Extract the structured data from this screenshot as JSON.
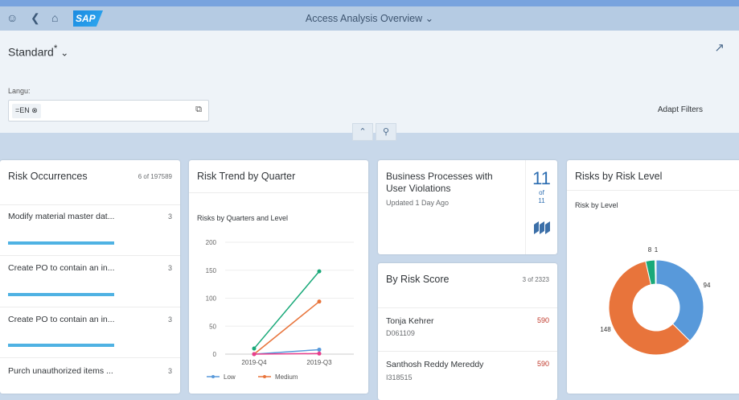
{
  "shell": {
    "title": "Access Analysis Overview",
    "logo": "SAP",
    "icons": [
      "user-icon",
      "back-icon",
      "home-icon"
    ]
  },
  "header": {
    "variant": "Standard",
    "variant_modified": "*",
    "filter_label": "Langu:",
    "token": "=EN",
    "adapt_filters": "Adapt Filters"
  },
  "cards": {
    "risk_occurrences": {
      "title": "Risk Occurrences",
      "count": "6 of 197589",
      "items": [
        {
          "label": "Modify material master dat...",
          "value": "3",
          "bar": 1.0
        },
        {
          "label": "Create PO to contain an in...",
          "value": "3",
          "bar": 1.0
        },
        {
          "label": "Create PO to contain an in...",
          "value": "3",
          "bar": 1.0
        },
        {
          "label": "Purch unauthorized items ...",
          "value": "3",
          "bar": 1.0
        }
      ]
    },
    "risk_trend": {
      "title": "Risk Trend by Quarter"
    },
    "business_processes": {
      "title_line1": "Business Processes with",
      "title_line2": "User Violations",
      "subtitle": "Updated 1 Day Ago",
      "kpi": "11",
      "of": "of",
      "total": "11",
      "kpi_color": "#2b6cb0"
    },
    "risk_score": {
      "title": "By Risk Score",
      "count": "3 of 2323",
      "items": [
        {
          "name": "Tonja Kehrer",
          "id": "D061109",
          "score": "590"
        },
        {
          "name": "Santhosh Reddy Mereddy",
          "id": "I318515",
          "score": "590"
        }
      ]
    },
    "risk_level": {
      "title": "Risks by Risk Level"
    }
  },
  "chart_data": [
    {
      "type": "line",
      "title": "Risks by Quarters and Level",
      "categories": [
        "2019-Q4",
        "2019-Q3"
      ],
      "ylim": [
        0,
        200
      ],
      "yticks": [
        "0",
        "50",
        "100",
        "150",
        "200"
      ],
      "grid": true,
      "legend": "bottom",
      "series": [
        {
          "name": "Low",
          "color": "#5899da",
          "values": [
            0,
            8
          ]
        },
        {
          "name": "Medium",
          "color": "#e8743b",
          "values": [
            0,
            94
          ]
        },
        {
          "color": "#19a979",
          "values": [
            10,
            148
          ]
        },
        {
          "color": "#e83e8c",
          "values": [
            0,
            1
          ]
        }
      ]
    },
    {
      "type": "pie",
      "donut": true,
      "title": "Risk by Level",
      "values": [
        94,
        148,
        8,
        1
      ],
      "labels": [
        "94",
        "148",
        "8",
        "1"
      ],
      "colors": [
        "#5899da",
        "#e8743b",
        "#19a979",
        "#d0d0d0"
      ]
    }
  ]
}
